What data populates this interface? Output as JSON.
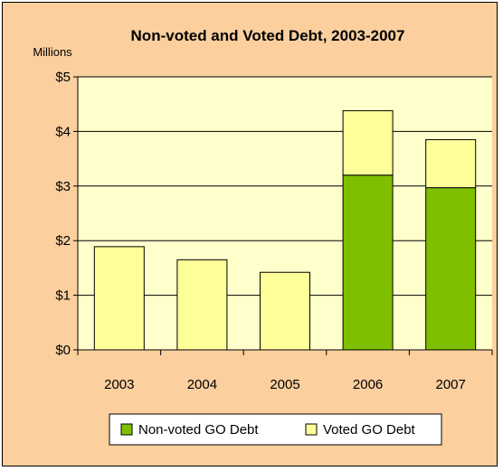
{
  "chart_data": {
    "type": "bar",
    "stacked": true,
    "title": "Non-voted and Voted Debt, 2003-2007",
    "unit_label": "Millions",
    "categories": [
      "2003",
      "2004",
      "2005",
      "2006",
      "2007"
    ],
    "series": [
      {
        "name": "Non-voted GO Debt",
        "values": [
          0,
          0,
          0,
          3.2,
          2.97
        ],
        "color": "#7fbf00"
      },
      {
        "name": "Voted GO Debt",
        "values": [
          1.89,
          1.65,
          1.42,
          1.18,
          0.88
        ],
        "color": "#ffff99"
      }
    ],
    "ylim": [
      0,
      5
    ],
    "yticks": [
      0,
      1,
      2,
      3,
      4,
      5
    ],
    "ytick_labels": [
      "$0",
      "$1",
      "$2",
      "$3",
      "$4",
      "$5"
    ],
    "grid": true,
    "legend_position": "bottom",
    "plot_background": "#ffffcc",
    "page_background": "#fbcf9e"
  }
}
